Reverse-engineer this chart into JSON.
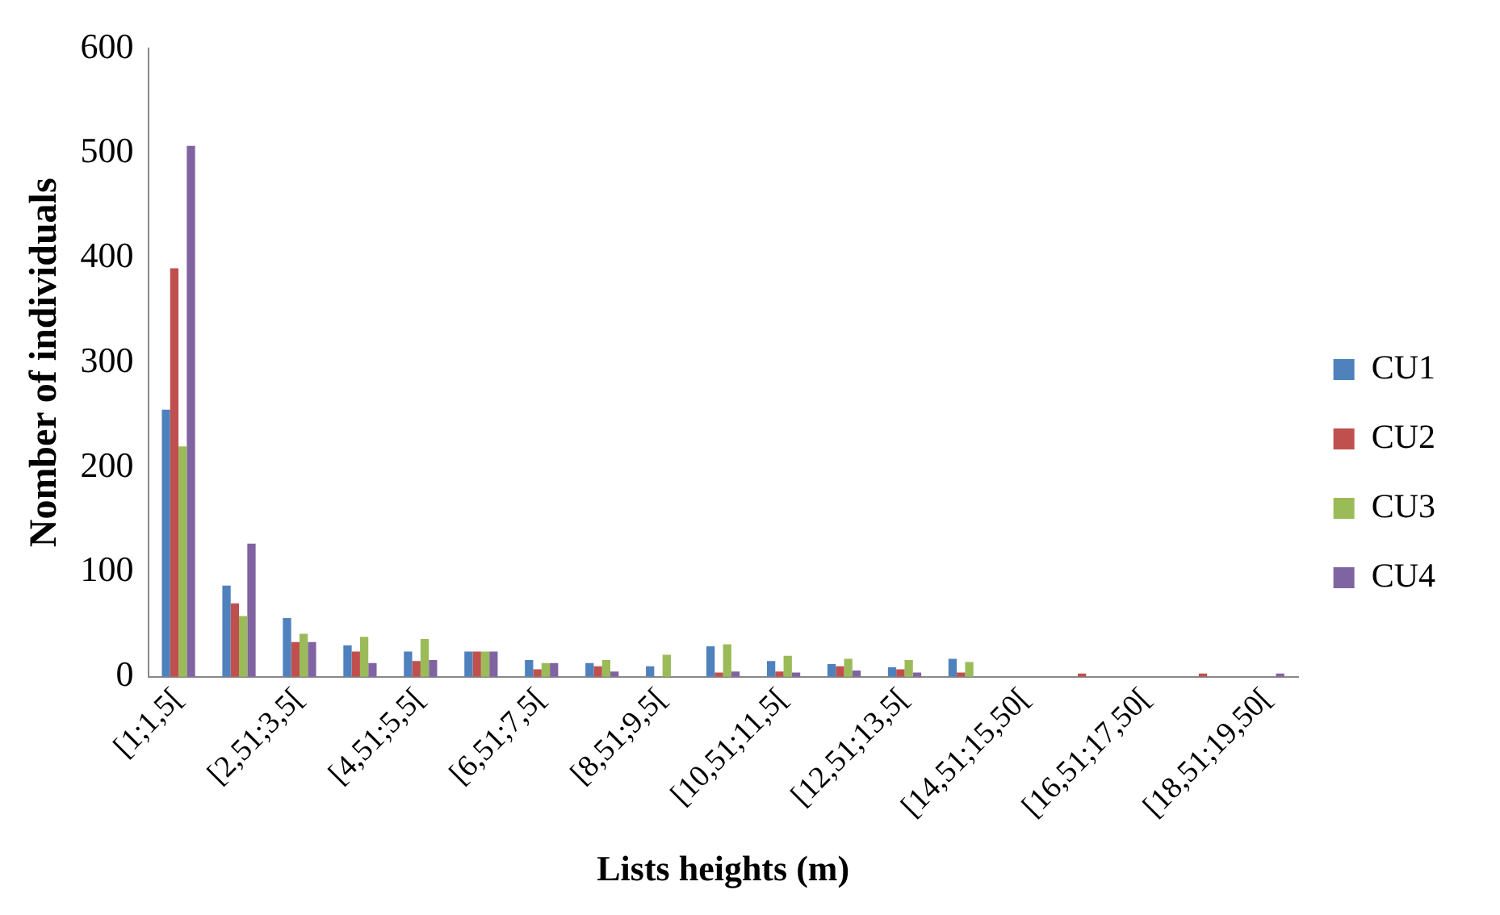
{
  "chart_data": {
    "type": "bar",
    "xlabel": "Lists heights (m)",
    "ylabel": "Nomber of individuals",
    "categories": [
      "[1;1,5[",
      null,
      "[2,51;3,5[",
      null,
      "[4,51;5,5[",
      null,
      "[6,51;7,5[",
      null,
      "[8,51;9,5[",
      null,
      "[10,51;11,5[",
      null,
      "[12,51;13,5[",
      null,
      "[14,51;15,50[",
      null,
      "[16,51;17,50[",
      null,
      "[18,51;19,50["
    ],
    "series": [
      {
        "name": "CU1",
        "color": "#4f81bd",
        "values": [
          255,
          87,
          56,
          30,
          24,
          24,
          16,
          13,
          10,
          29,
          15,
          12,
          9,
          17,
          0,
          0,
          0,
          0,
          0
        ]
      },
      {
        "name": "CU2",
        "color": "#c0504d",
        "values": [
          390,
          70,
          33,
          24,
          15,
          24,
          7,
          10,
          0,
          4,
          5,
          10,
          7,
          4,
          null,
          3,
          0,
          3,
          null
        ]
      },
      {
        "name": "CU3",
        "color": "#9bbb59",
        "values": [
          220,
          58,
          41,
          38,
          36,
          24,
          13,
          16,
          21,
          31,
          20,
          17,
          16,
          14,
          0,
          null,
          0,
          0,
          0
        ]
      },
      {
        "name": "CU4",
        "color": "#8064a2",
        "values": [
          507,
          127,
          33,
          13,
          16,
          24,
          13,
          5,
          0,
          5,
          4,
          6,
          4,
          0,
          null,
          0,
          0,
          0,
          3
        ]
      }
    ],
    "ylim": [
      0,
      600
    ],
    "yticks": [
      0,
      100,
      200,
      300,
      400,
      500,
      600
    ],
    "grid": false,
    "legend": "right"
  }
}
